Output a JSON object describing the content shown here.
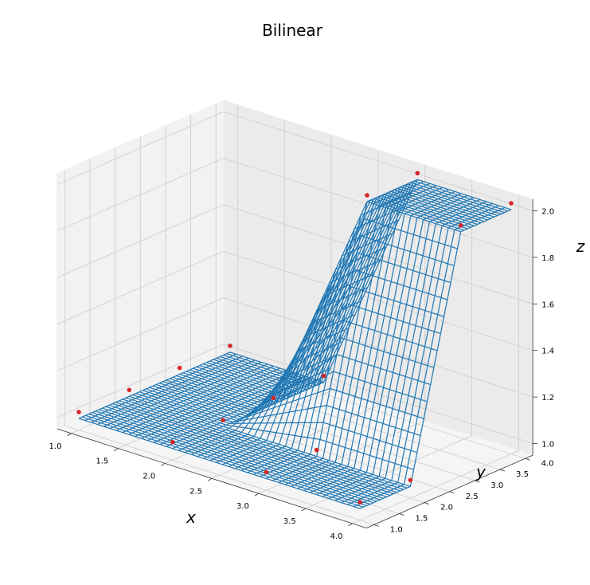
{
  "chart_data": {
    "type": "surface",
    "title": "Bilinear",
    "xlabel": "x",
    "ylabel": "y",
    "zlabel": "z",
    "x_ticks": [
      "1.0",
      "1.5",
      "2.0",
      "2.5",
      "3.0",
      "3.5",
      "4.0"
    ],
    "y_ticks": [
      "1.0",
      "1.5",
      "2.0",
      "2.5",
      "3.0",
      "3.5",
      "4.0"
    ],
    "z_ticks": [
      "1.0",
      "1.2",
      "1.4",
      "1.6",
      "1.8",
      "2.0"
    ],
    "xlim": [
      0.85,
      4.15
    ],
    "ylim": [
      0.85,
      4.15
    ],
    "zlim": [
      0.95,
      2.05
    ],
    "grid": true,
    "surface_color": "#1f77b4",
    "point_color": "#d62728",
    "wireframe_lines_per_axis": 46,
    "sample_x": [
      1,
      2,
      3,
      4
    ],
    "sample_y": [
      1,
      2,
      3,
      4
    ],
    "sample_z": [
      [
        1,
        1,
        1,
        1
      ],
      [
        1,
        1,
        1,
        1
      ],
      [
        1,
        1,
        2,
        2
      ],
      [
        1,
        1,
        2,
        2
      ]
    ]
  }
}
